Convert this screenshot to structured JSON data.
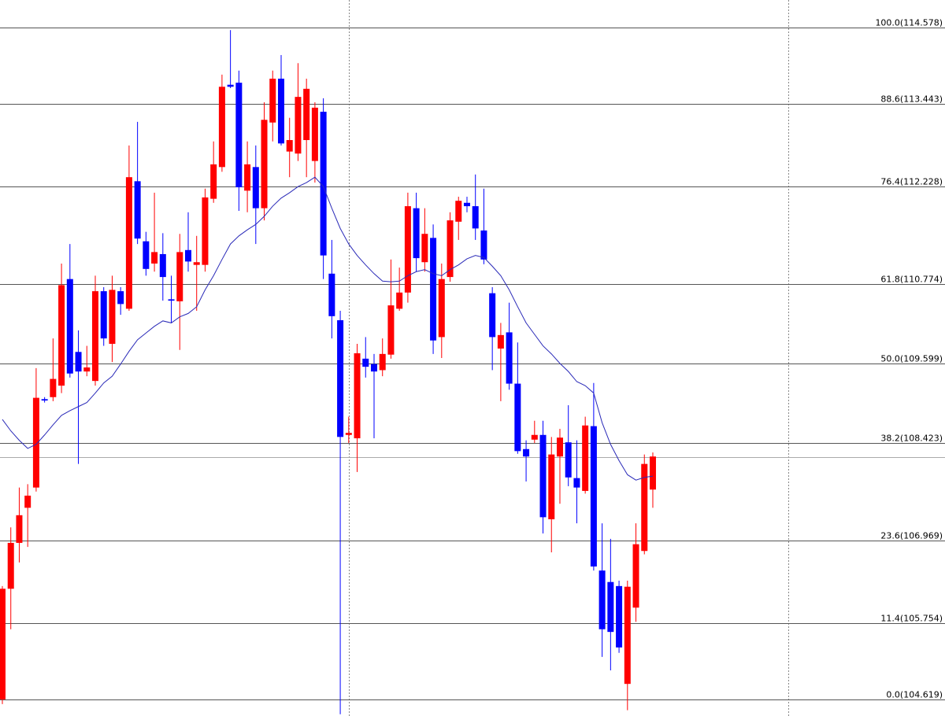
{
  "chart_data": {
    "type": "candlestick",
    "up_color": "#ff0000",
    "down_color": "#0000ff",
    "ylim": [
      104.374,
      114.986
    ],
    "yticks": [
      {
        "value": 114.578,
        "label": "100.0(114.578)"
      },
      {
        "value": 113.443,
        "label": "88.6(113.443)"
      },
      {
        "value": 112.228,
        "label": "76.4(112.228)"
      },
      {
        "value": 110.774,
        "label": "61.8(110.774)"
      },
      {
        "value": 109.599,
        "label": "50.0(109.599)"
      },
      {
        "value": 108.423,
        "label": "38.2(108.423)"
      },
      {
        "value": 106.969,
        "label": "23.6(106.969)"
      },
      {
        "value": 105.754,
        "label": "11.4(105.754)"
      },
      {
        "value": 104.619,
        "label": "0.0(104.619)"
      }
    ],
    "current_price": 108.21,
    "open": [
      104.62,
      106.26,
      106.94,
      107.46,
      107.76,
      109.07,
      109.1,
      109.27,
      110.85,
      109.77,
      109.48,
      109.34,
      110.67,
      109.89,
      110.67,
      110.41,
      112.3,
      111.41,
      111.08,
      111.22,
      110.55,
      110.52,
      111.28,
      111.06,
      111.06,
      112.04,
      112.51,
      113.73,
      113.76,
      112.16,
      112.51,
      111.9,
      113.17,
      113.82,
      112.74,
      112.71,
      112.91,
      112.6,
      113.33,
      110.93,
      110.24,
      108.54,
      108.49,
      109.67,
      109.59,
      109.5,
      109.73,
      110.41,
      110.65,
      111.9,
      111.1,
      111.46,
      109.99,
      110.88,
      111.7,
      111.98,
      111.93,
      111.57,
      110.64,
      109.82,
      110.06,
      109.3,
      108.33,
      108.47,
      108.54,
      107.29,
      108.22,
      108.43,
      107.9,
      107.71,
      108.67,
      106.53,
      106.36,
      106.3,
      104.85,
      105.98,
      106.82,
      107.73
    ],
    "high": [
      106.3,
      107.17,
      107.76,
      107.81,
      109.53,
      109.1,
      109.97,
      111.08,
      111.37,
      110.09,
      109.86,
      110.9,
      110.73,
      110.9,
      110.73,
      112.83,
      113.18,
      111.55,
      112.13,
      111.53,
      110.9,
      111.52,
      111.84,
      111.49,
      112.19,
      112.89,
      113.88,
      114.54,
      113.94,
      112.89,
      112.83,
      113.47,
      113.94,
      114.17,
      113.24,
      114.05,
      113.82,
      113.47,
      113.53,
      111.43,
      110.38,
      108.81,
      109.89,
      109.99,
      109.74,
      109.97,
      111.14,
      111.02,
      112.13,
      112.13,
      111.9,
      111.66,
      111.08,
      111.84,
      112.07,
      112.07,
      112.4,
      112.19,
      110.73,
      110.2,
      110.5,
      109.91,
      108.46,
      108.75,
      108.75,
      108.51,
      108.63,
      108.98,
      108.46,
      108.81,
      109.31,
      107.23,
      107.0,
      106.38,
      106.38,
      107.23,
      108.25,
      108.28
    ],
    "low": [
      104.55,
      105.66,
      106.65,
      106.88,
      107.7,
      109.02,
      109.04,
      109.16,
      109.39,
      108.11,
      109.41,
      109.27,
      109.86,
      109.62,
      110.32,
      110.38,
      111.37,
      110.9,
      110.96,
      110.53,
      110.2,
      109.8,
      110.96,
      110.38,
      110.96,
      111.98,
      112.44,
      113.68,
      111.86,
      111.84,
      111.37,
      111.72,
      112.89,
      112.83,
      112.36,
      112.6,
      112.36,
      112.28,
      110.85,
      109.97,
      104.4,
      108.42,
      107.99,
      109.39,
      108.49,
      109.41,
      109.67,
      110.38,
      110.5,
      110.96,
      110.96,
      109.74,
      109.68,
      110.81,
      111.43,
      111.84,
      111.43,
      111.07,
      109.5,
      109.04,
      109.21,
      108.26,
      107.85,
      108.42,
      107.08,
      106.8,
      107.52,
      107.78,
      107.23,
      107.67,
      106.53,
      105.25,
      105.05,
      105.31,
      104.46,
      105.77,
      106.77,
      107.46
    ],
    "close": [
      106.26,
      106.94,
      107.35,
      107.64,
      109.09,
      109.05,
      109.37,
      110.76,
      109.45,
      109.48,
      109.54,
      110.67,
      109.97,
      110.69,
      110.48,
      112.36,
      111.45,
      111.0,
      111.25,
      110.88,
      110.53,
      111.25,
      111.11,
      111.1,
      112.06,
      112.55,
      113.7,
      113.7,
      112.21,
      112.55,
      111.9,
      113.21,
      113.82,
      112.86,
      112.91,
      113.55,
      113.67,
      113.39,
      111.2,
      110.3,
      108.51,
      108.57,
      109.75,
      109.55,
      109.48,
      109.74,
      110.46,
      110.65,
      111.93,
      111.16,
      111.52,
      109.94,
      110.85,
      111.72,
      112.01,
      111.93,
      111.6,
      111.14,
      109.99,
      110.02,
      109.3,
      108.3,
      108.22,
      108.54,
      107.32,
      108.25,
      108.5,
      107.91,
      107.76,
      108.68,
      106.59,
      105.66,
      105.62,
      105.39,
      106.29,
      106.92,
      108.11,
      108.22
    ],
    "ma": {
      "color": "#2a2ab8",
      "values": [
        108.77,
        108.6,
        108.46,
        108.34,
        108.4,
        108.54,
        108.69,
        108.83,
        108.9,
        108.96,
        109.02,
        109.16,
        109.31,
        109.41,
        109.59,
        109.78,
        109.95,
        110.05,
        110.15,
        110.23,
        110.2,
        110.29,
        110.34,
        110.44,
        110.69,
        110.9,
        111.14,
        111.37,
        111.49,
        111.58,
        111.66,
        111.78,
        111.93,
        112.05,
        112.13,
        112.22,
        112.28,
        112.36,
        112.22,
        111.9,
        111.6,
        111.37,
        111.2,
        111.06,
        110.93,
        110.82,
        110.81,
        110.82,
        110.9,
        110.96,
        110.99,
        110.93,
        110.9,
        110.99,
        111.06,
        111.15,
        111.2,
        111.17,
        111.04,
        110.9,
        110.69,
        110.44,
        110.2,
        110.03,
        109.86,
        109.74,
        109.6,
        109.48,
        109.33,
        109.27,
        109.16,
        108.72,
        108.4,
        108.16,
        107.95,
        107.87,
        107.91,
        107.93
      ]
    }
  }
}
